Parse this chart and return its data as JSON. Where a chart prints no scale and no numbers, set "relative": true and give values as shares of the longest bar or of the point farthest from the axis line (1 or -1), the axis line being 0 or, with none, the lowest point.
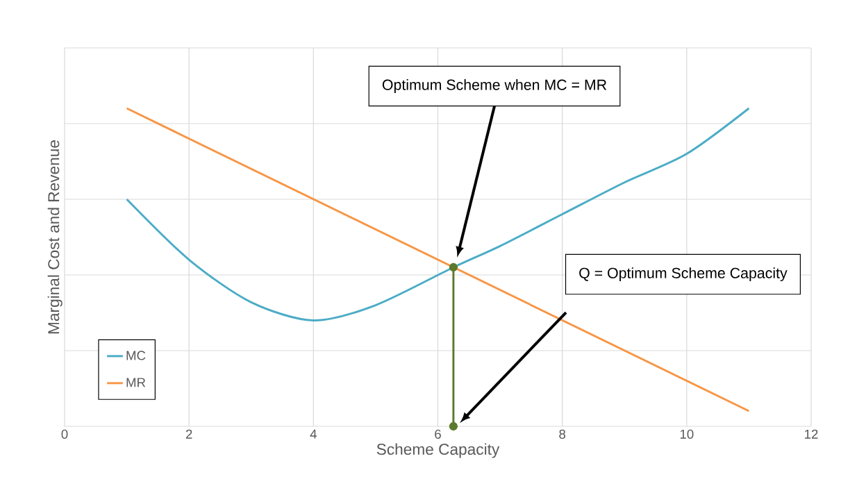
{
  "chart_data": {
    "type": "line",
    "xlabel": "Scheme Capacity",
    "ylabel": "Marginal Cost and Revenue",
    "relative": true,
    "xlim": [
      0,
      12
    ],
    "xticks": [
      0,
      2,
      4,
      6,
      8,
      10,
      12
    ],
    "grid": true,
    "legend": "bottom left",
    "tick_labels": "x",
    "marker": "none",
    "series": [
      {
        "name": "MC",
        "color": "#4bacc6",
        "x": [
          1,
          2,
          3,
          4,
          5,
          6.25,
          7,
          8,
          9,
          10,
          11
        ],
        "values": [
          0.714,
          0.524,
          0.39,
          0.333,
          0.381,
          0.5,
          0.567,
          0.667,
          0.767,
          0.857,
          1
        ]
      },
      {
        "name": "MR",
        "color": "#f79646",
        "x": [
          1,
          11
        ],
        "values": [
          1,
          0.048
        ]
      },
      {
        "color": "#5b7a2d",
        "marker": "circle",
        "x": [
          6.25,
          6.25
        ],
        "values": [
          0,
          0.5
        ]
      }
    ],
    "annotations": [
      "Optimum Scheme when MC = MR",
      "Q = Optimum Scheme Capacity"
    ]
  }
}
